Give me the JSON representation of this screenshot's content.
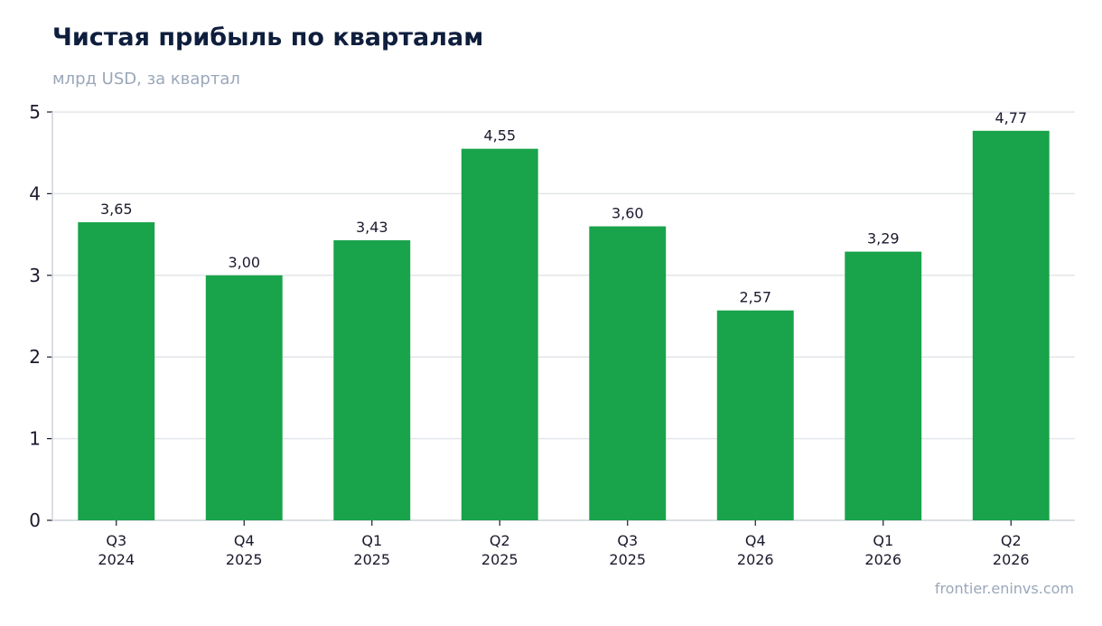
{
  "chart_data": {
    "type": "bar",
    "title": "Чистая прибыль по кварталам",
    "subtitle": "млрд USD, за квартал",
    "categories": [
      [
        "Q3",
        "2024"
      ],
      [
        "Q4",
        "2025"
      ],
      [
        "Q1",
        "2025"
      ],
      [
        "Q2",
        "2025"
      ],
      [
        "Q3",
        "2025"
      ],
      [
        "Q4",
        "2026"
      ],
      [
        "Q1",
        "2026"
      ],
      [
        "Q2",
        "2026"
      ]
    ],
    "values": [
      3.65,
      3.0,
      3.43,
      4.55,
      3.6,
      2.57,
      3.29,
      4.77
    ],
    "value_labels": [
      "3,65",
      "3,00",
      "3,43",
      "4,55",
      "3,60",
      "2,57",
      "3,29",
      "4,77"
    ],
    "ylim": [
      0,
      5
    ],
    "yticks": [
      0,
      1,
      2,
      3,
      4,
      5
    ],
    "grid": true,
    "colors": {
      "bar": "#19a34a",
      "grid": "#e3e6ea",
      "axis": "#cfd4da",
      "text": "#1a1a2e"
    }
  },
  "source": "frontier.eninvs.com"
}
